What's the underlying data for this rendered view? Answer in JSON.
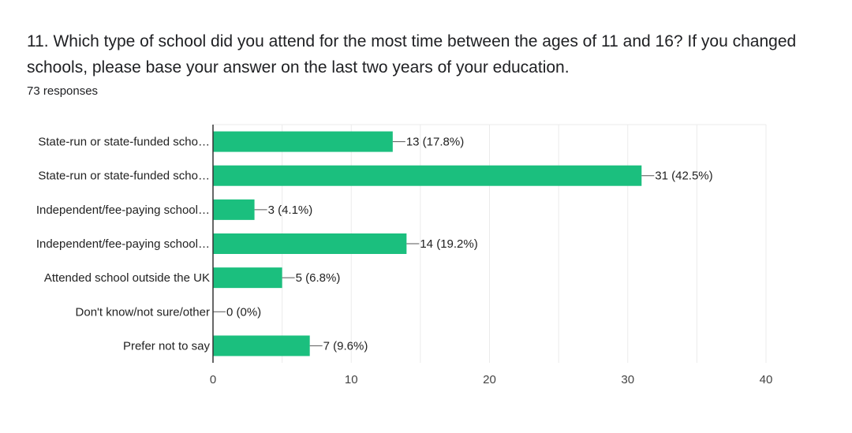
{
  "question": {
    "title": "11. Which type of school did you attend for the most time between the ages of 11 and 16?  If you changed schools, please base your answer on the last two years of your education.",
    "responses": "73 responses"
  },
  "chart_data": {
    "type": "bar",
    "orientation": "horizontal",
    "categories": [
      "State-run or state-funded scho…",
      "State-run or state-funded scho…",
      "Independent/fee-paying school…",
      "Independent/fee-paying school…",
      "Attended school outside the UK",
      "Don't know/not sure/other",
      "Prefer not to say"
    ],
    "values": [
      13,
      31,
      3,
      14,
      5,
      0,
      7
    ],
    "data_labels": [
      "13 (17.8%)",
      "31 (42.5%)",
      "3 (4.1%)",
      "14 (19.2%)",
      "5 (6.8%)",
      "0 (0%)",
      "7 (9.6%)"
    ],
    "xlim": [
      0,
      40
    ],
    "xticks": [
      "0",
      "10",
      "20",
      "30",
      "40"
    ],
    "xtick_values": [
      0,
      10,
      20,
      30,
      40
    ],
    "bar_color": "#1bbf7e",
    "grid": true
  }
}
